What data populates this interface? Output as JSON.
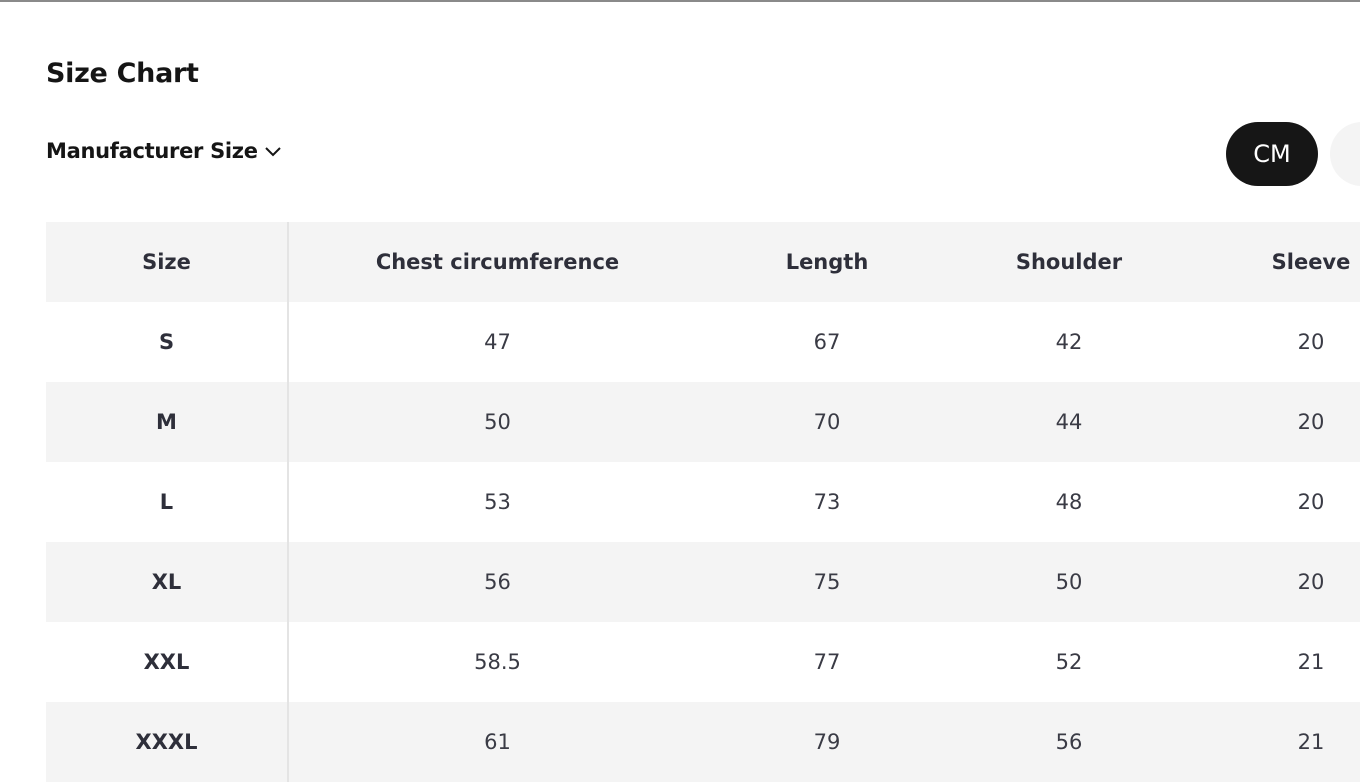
{
  "title": "Size Chart",
  "size_system": "Manufacturer Size",
  "unit": "CM",
  "table": {
    "headers": [
      "Size",
      "Chest circumference",
      "Length",
      "Shoulder",
      "Sleeve"
    ],
    "rows": [
      [
        "S",
        47,
        67,
        42,
        20
      ],
      [
        "M",
        50,
        70,
        44,
        20
      ],
      [
        "L",
        53,
        73,
        48,
        20
      ],
      [
        "XL",
        56,
        75,
        50,
        20
      ],
      [
        "XXL",
        58.5,
        77,
        52,
        21
      ],
      [
        "XXXL",
        61,
        79,
        56,
        21
      ]
    ]
  }
}
